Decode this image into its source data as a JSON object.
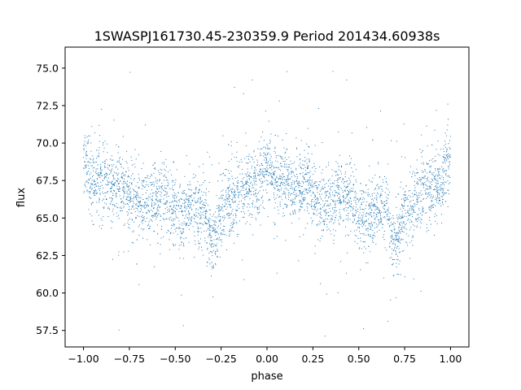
{
  "chart_data": {
    "type": "scatter",
    "title": "1SWASPJ161730.45-230359.9 Period 201434.60938s",
    "xlabel": "phase",
    "ylabel": "flux",
    "xlim": [
      -1.1,
      1.1
    ],
    "ylim": [
      56.4,
      76.4
    ],
    "xticks": [
      -1.0,
      -0.75,
      -0.5,
      -0.25,
      0.0,
      0.25,
      0.5,
      0.75,
      1.0
    ],
    "xtick_labels": [
      "−1.00",
      "−0.75",
      "−0.50",
      "−0.25",
      "0.00",
      "0.25",
      "0.50",
      "0.75",
      "1.00"
    ],
    "yticks": [
      57.5,
      60.0,
      62.5,
      65.0,
      67.5,
      70.0,
      72.5,
      75.0
    ],
    "ytick_labels": [
      "57.5",
      "60.0",
      "62.5",
      "65.0",
      "67.5",
      "70.0",
      "72.5",
      "75.0"
    ],
    "grid": false,
    "marker_color": "#1f77b4",
    "series": [
      {
        "name": "",
        "description_of_shape": "dense folded light curve repeated over two cycles",
        "profile_x": [
          -1.0,
          -0.95,
          -0.9,
          -0.85,
          -0.8,
          -0.75,
          -0.7,
          -0.65,
          -0.6,
          -0.55,
          -0.5,
          -0.45,
          -0.4,
          -0.35,
          -0.3,
          -0.25,
          -0.2,
          -0.15,
          -0.1,
          -0.05,
          0.0,
          0.05,
          0.1,
          0.15,
          0.2,
          0.25,
          0.3,
          0.35,
          0.4,
          0.45,
          0.5,
          0.55,
          0.6,
          0.65,
          0.7,
          0.75,
          0.8,
          0.85,
          0.9,
          0.95,
          1.0
        ],
        "profile_y": [
          69.0,
          67.2,
          67.5,
          66.8,
          67.2,
          66.6,
          66.0,
          66.0,
          66.4,
          66.6,
          65.4,
          65.0,
          65.8,
          65.6,
          63.0,
          65.4,
          66.2,
          66.6,
          67.0,
          67.2,
          69.0,
          67.2,
          67.5,
          66.8,
          67.2,
          66.6,
          66.0,
          66.0,
          66.4,
          66.6,
          65.4,
          65.0,
          65.8,
          65.6,
          63.0,
          65.4,
          66.2,
          66.6,
          67.0,
          67.2,
          69.0
        ]
      }
    ]
  }
}
